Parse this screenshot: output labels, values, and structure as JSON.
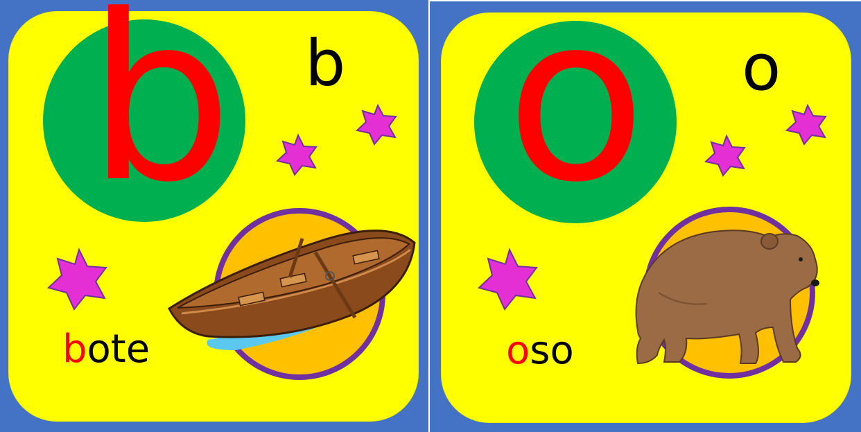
{
  "cards": [
    {
      "big_letter": "b",
      "small_letter": "b",
      "word_first": "b",
      "word_rest": "ote",
      "picture_icon": "boat-icon"
    },
    {
      "big_letter": "o",
      "small_letter": "o",
      "word_first": "o",
      "word_rest": "so",
      "picture_icon": "bear-icon"
    }
  ],
  "colors": {
    "frame": "#4472c4",
    "card": "#ffff00",
    "disc": "#00b050",
    "letter": "#ff0000",
    "star": "#e32fd3",
    "star_outline": "#7030a0",
    "medallion": "#ffc000",
    "medallion_ring": "#7030a0"
  }
}
